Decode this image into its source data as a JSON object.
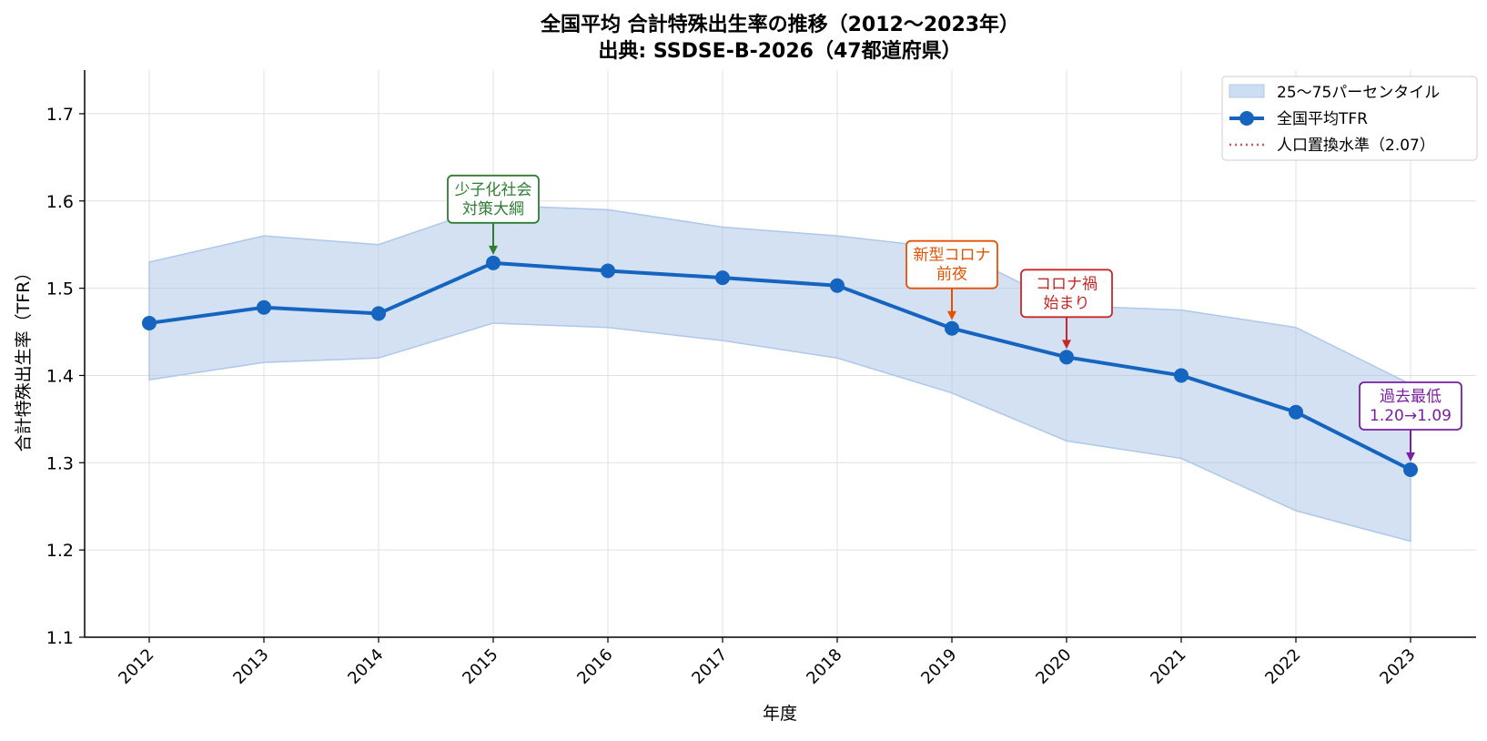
{
  "chart_data": {
    "type": "line",
    "title": "全国平均 合計特殊出生率の推移（2012〜2023年）",
    "subtitle": "出典: SSDSE-B-2026（47都道府県）",
    "xlabel": "年度",
    "ylabel": "合計特殊出生率（TFR）",
    "ylim": [
      1.1,
      1.75
    ],
    "yticks": [
      "1.1",
      "1.2",
      "1.3",
      "1.4",
      "1.5",
      "1.6",
      "1.7"
    ],
    "grid": true,
    "legend_position": "top-right",
    "categories": [
      "2012",
      "2013",
      "2014",
      "2015",
      "2016",
      "2017",
      "2018",
      "2019",
      "2020",
      "2021",
      "2022",
      "2023"
    ],
    "series": [
      {
        "name": "全国平均TFR",
        "values": [
          1.46,
          1.478,
          1.471,
          1.529,
          1.52,
          1.512,
          1.503,
          1.454,
          1.421,
          1.4,
          1.358,
          1.292
        ],
        "color": "#1565c0"
      }
    ],
    "band": {
      "name": "25〜75パーセンタイル",
      "lower": [
        1.395,
        1.415,
        1.42,
        1.46,
        1.455,
        1.44,
        1.42,
        1.38,
        1.325,
        1.305,
        1.245,
        1.21
      ],
      "upper": [
        1.53,
        1.56,
        1.55,
        1.595,
        1.59,
        1.57,
        1.56,
        1.545,
        1.48,
        1.475,
        1.455,
        1.39
      ],
      "color": "#aec8ea"
    },
    "reference_line": {
      "name": "人口置換水準（2.07）",
      "value": 2.07,
      "color": "#e05050"
    },
    "annotations": [
      {
        "text": [
          "少子化社会",
          "対策大綱"
        ],
        "x": "2015",
        "color": "#2e7d32"
      },
      {
        "text": [
          "新型コロナ",
          "前夜"
        ],
        "x": "2019",
        "color": "#e65100"
      },
      {
        "text": [
          "コロナ禍",
          "始まり"
        ],
        "x": "2020",
        "color": "#c62828"
      },
      {
        "text": [
          "過去最低",
          "1.20→1.09"
        ],
        "x": "2023",
        "color": "#7b1fa2"
      }
    ]
  }
}
